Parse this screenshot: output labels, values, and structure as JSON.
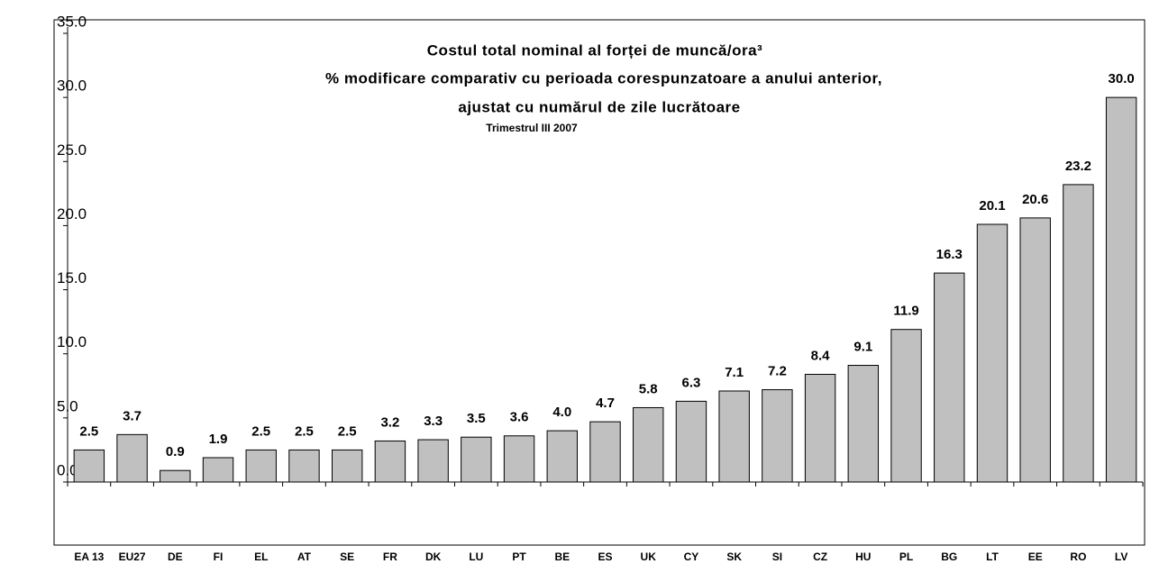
{
  "chart_data": {
    "type": "bar",
    "title": [
      "Costul total nominal al forței de muncă/ora³",
      "% modificare comparativ cu perioada corespunzatoare a anului anterior,",
      "ajustat cu numărul de zile lucrătoare"
    ],
    "subtitle": "Trimestrul III 2007",
    "categories": [
      "EA 13",
      "EU27",
      "DE",
      "FI",
      "EL",
      "AT",
      "SE",
      "FR",
      "DK",
      "LU",
      "PT",
      "BE",
      "ES",
      "UK",
      "CY",
      "SK",
      "SI",
      "CZ",
      "HU",
      "PL",
      "BG",
      "LT",
      "EE",
      "RO",
      "LV"
    ],
    "values": [
      2.5,
      3.7,
      0.9,
      1.9,
      2.5,
      2.5,
      2.5,
      3.2,
      3.3,
      3.5,
      3.6,
      4.0,
      4.7,
      5.8,
      6.3,
      7.1,
      7.2,
      8.4,
      9.1,
      11.9,
      16.3,
      20.1,
      20.6,
      23.2,
      30.0
    ],
    "value_labels": [
      "2.5",
      "3.7",
      "0.9",
      "1.9",
      "2.5",
      "2.5",
      "2.5",
      "3.2",
      "3.3",
      "3.5",
      "3.6",
      "4.0",
      "4.7",
      "5.8",
      "6.3",
      "7.1",
      "7.2",
      "8.4",
      "9.1",
      "11.9",
      "16.3",
      "20.1",
      "20.6",
      "23.2",
      "30.0"
    ],
    "color": "#c0c0c0",
    "ylim": [
      0,
      35
    ],
    "yticks": [
      {
        "value": 0,
        "label": "0.0"
      },
      {
        "value": 5,
        "label": "5.0"
      },
      {
        "value": 10,
        "label": "10.0"
      },
      {
        "value": 15,
        "label": "15.0"
      },
      {
        "value": 20,
        "label": "20.0"
      },
      {
        "value": 25,
        "label": "25.0"
      },
      {
        "value": 30,
        "label": "30.0"
      },
      {
        "value": 35,
        "label": "35.0"
      }
    ],
    "grid": false
  }
}
